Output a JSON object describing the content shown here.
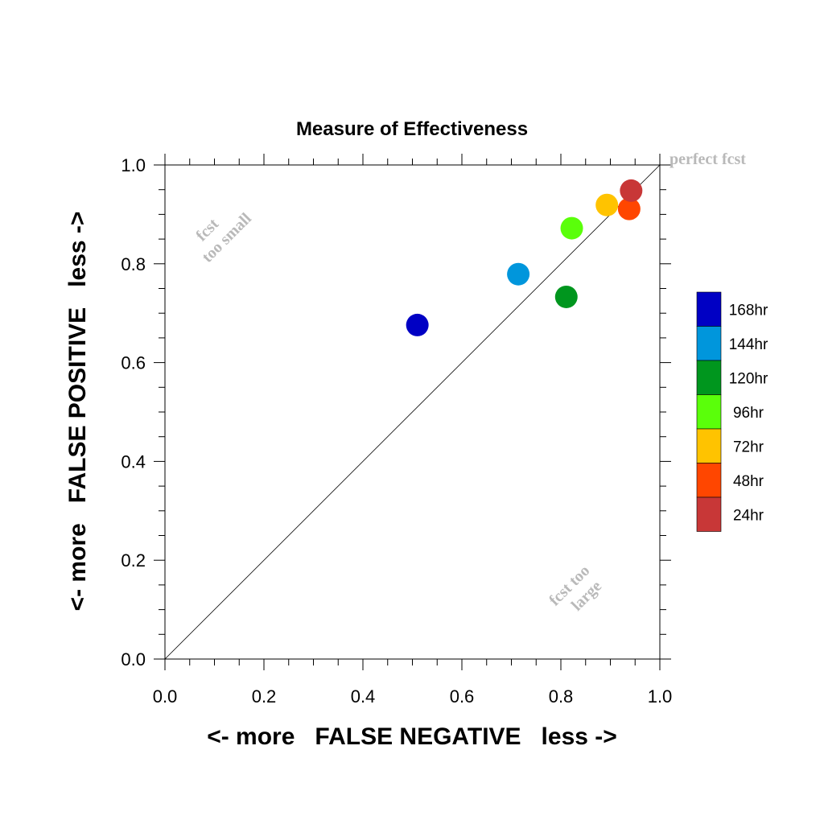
{
  "chart_data": {
    "type": "scatter",
    "title": "Measure of Effectiveness",
    "xlabel": "<- more   FALSE NEGATIVE   less ->",
    "ylabel": "<- more   FALSE POSITIVE   less ->",
    "xlim": [
      0.0,
      1.0
    ],
    "ylim": [
      0.0,
      1.0
    ],
    "xticks": [
      "0.0",
      "0.2",
      "0.4",
      "0.6",
      "0.8",
      "1.0"
    ],
    "yticks": [
      "0.0",
      "0.2",
      "0.4",
      "0.6",
      "0.8",
      "1.0"
    ],
    "grid": false,
    "reference_line": "diagonal",
    "annotations": {
      "perfect": "perfect fcst",
      "too_small_line1": "fcst",
      "too_small_line2": "too small",
      "too_large_line1": "fcst too",
      "too_large_line2": "large"
    },
    "legend_position": "right",
    "series": [
      {
        "name": "168hr",
        "color": "#0000c4",
        "x": 0.51,
        "y": 0.676
      },
      {
        "name": "144hr",
        "color": "#0096dc",
        "x": 0.714,
        "y": 0.779
      },
      {
        "name": "120hr",
        "color": "#00961e",
        "x": 0.811,
        "y": 0.733
      },
      {
        "name": "96hr",
        "color": "#5aff0a",
        "x": 0.822,
        "y": 0.872
      },
      {
        "name": "72hr",
        "color": "#ffc300",
        "x": 0.893,
        "y": 0.919
      },
      {
        "name": "48hr",
        "color": "#ff4600",
        "x": 0.938,
        "y": 0.911
      },
      {
        "name": "24hr",
        "color": "#c83737",
        "x": 0.942,
        "y": 0.948
      }
    ]
  }
}
